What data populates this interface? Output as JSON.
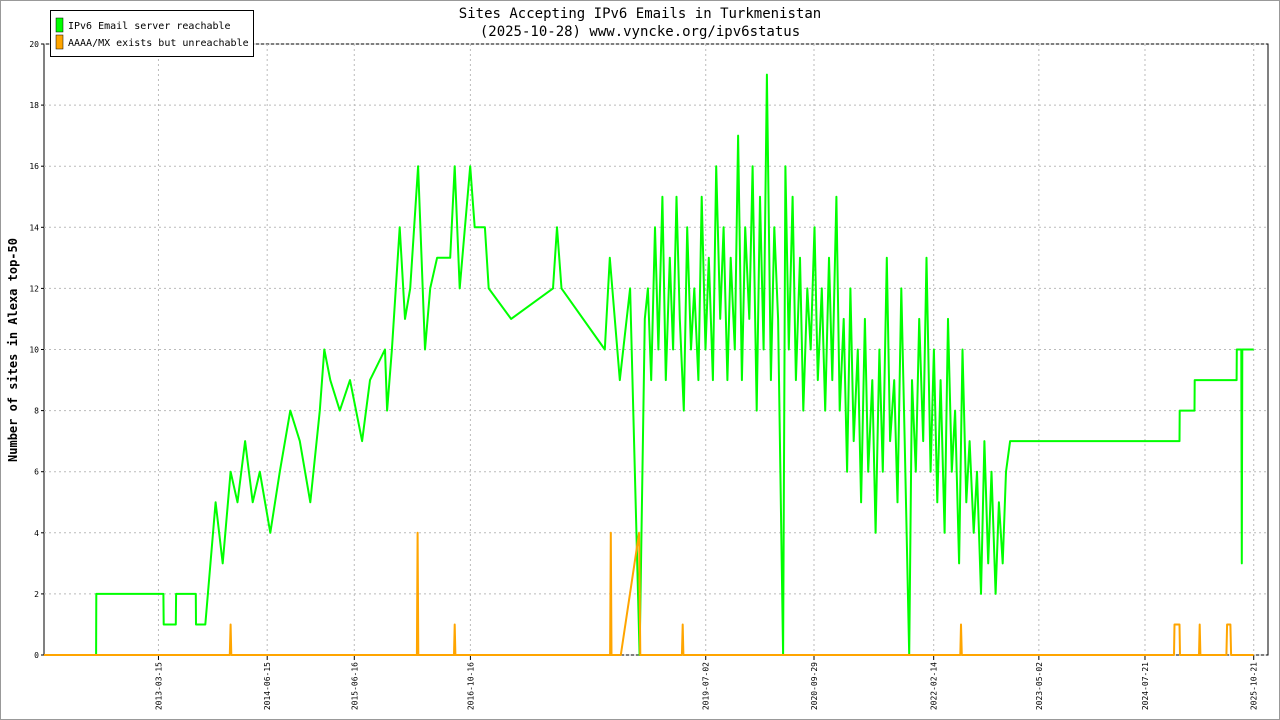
{
  "chart_data": {
    "type": "line",
    "title": "Sites Accepting IPv6 Emails in Turkmenistan",
    "subtitle": "(2025-10-28) www.vyncke.org/ipv6status",
    "y_label": "Number of sites in Alexa top-50",
    "xlim": [
      "2011-11-20",
      "2025-12-20"
    ],
    "xticks": [
      "2013-03-15",
      "2014-06-15",
      "2015-06-16",
      "2016-10-16",
      "2019-07-02",
      "2020-09-29",
      "2022-02-14",
      "2023-05-02",
      "2024-07-21",
      "2025-10-21"
    ],
    "ylim": [
      0,
      20
    ],
    "yticks": [
      0,
      2,
      4,
      6,
      8,
      10,
      12,
      14,
      16,
      18,
      20
    ],
    "grid": true,
    "legend": "top-left",
    "series": [
      {
        "name": "IPv6 Email server reachable",
        "color": "#00ff00",
        "x": [
          "2011-11-20",
          "2012-06-26",
          "2012-06-27",
          "2013-04-05",
          "2013-04-06",
          "2013-05-27",
          "2013-05-28",
          "2013-08-19",
          "2013-08-20",
          "2013-09-28",
          "2013-11-10",
          "2013-12-10",
          "2014-01-12",
          "2014-02-10",
          "2014-03-14",
          "2014-04-15",
          "2014-05-15",
          "2014-06-28",
          "2014-08-07",
          "2014-09-20",
          "2014-10-30",
          "2014-12-13",
          "2015-01-22",
          "2015-02-10",
          "2015-03-07",
          "2015-04-16",
          "2015-05-29",
          "2015-07-19",
          "2015-08-21",
          "2015-10-23",
          "2015-11-01",
          "2015-11-21",
          "2015-12-24",
          "2016-01-15",
          "2016-02-06",
          "2016-03-10",
          "2016-04-08",
          "2016-04-30",
          "2016-05-29",
          "2016-07-23",
          "2016-08-11",
          "2016-09-01",
          "2016-10-15",
          "2016-11-03",
          "2016-12-16",
          "2017-01-01",
          "2017-04-05",
          "2017-09-28",
          "2017-10-15",
          "2017-11-03",
          "2018-05-04",
          "2018-05-25",
          "2018-07-06",
          "2018-08-18",
          "2018-09-27",
          "2018-10-19",
          "2018-11-01",
          "2018-11-15",
          "2018-12-01",
          "2018-12-15",
          "2019-01-01",
          "2019-01-15",
          "2019-02-01",
          "2019-02-15",
          "2019-03-01",
          "2019-03-15",
          "2019-04-01",
          "2019-04-15",
          "2019-05-01",
          "2019-05-15",
          "2019-06-01",
          "2019-06-15",
          "2019-07-01",
          "2019-07-15",
          "2019-08-01",
          "2019-08-15",
          "2019-09-01",
          "2019-09-15",
          "2019-10-01",
          "2019-10-15",
          "2019-11-01",
          "2019-11-15",
          "2019-12-01",
          "2019-12-15",
          "2020-01-01",
          "2020-01-15",
          "2020-02-01",
          "2020-02-15",
          "2020-03-01",
          "2020-03-15",
          "2020-04-01",
          "2020-04-15",
          "2020-05-01",
          "2020-05-22",
          "2020-06-01",
          "2020-06-15",
          "2020-07-01",
          "2020-07-15",
          "2020-08-01",
          "2020-08-15",
          "2020-09-01",
          "2020-09-15",
          "2020-10-01",
          "2020-10-15",
          "2020-11-01",
          "2020-11-15",
          "2020-12-01",
          "2020-12-15",
          "2021-01-01",
          "2021-01-15",
          "2021-02-01",
          "2021-02-15",
          "2021-03-01",
          "2021-03-15",
          "2021-04-01",
          "2021-04-15",
          "2021-05-01",
          "2021-05-15",
          "2021-06-01",
          "2021-06-15",
          "2021-07-01",
          "2021-07-15",
          "2021-08-01",
          "2021-08-15",
          "2021-09-01",
          "2021-09-15",
          "2021-10-01",
          "2021-10-15",
          "2021-11-03",
          "2021-11-15",
          "2021-12-01",
          "2021-12-15",
          "2022-01-01",
          "2022-01-15",
          "2022-02-01",
          "2022-02-15",
          "2022-03-01",
          "2022-03-15",
          "2022-04-01",
          "2022-04-15",
          "2022-05-01",
          "2022-05-15",
          "2022-06-01",
          "2022-06-15",
          "2022-07-01",
          "2022-07-15",
          "2022-08-01",
          "2022-08-15",
          "2022-09-01",
          "2022-09-15",
          "2022-10-01",
          "2022-10-15",
          "2022-11-01",
          "2022-11-15",
          "2022-12-01",
          "2022-12-15",
          "2023-01-01",
          "2024-12-13",
          "2024-12-14",
          "2025-02-14",
          "2025-02-15",
          "2025-08-10",
          "2025-08-11",
          "2025-08-30",
          "2025-09-01",
          "2025-09-03",
          "2025-10-21"
        ],
        "values": [
          0,
          0,
          2,
          2,
          1,
          1,
          2,
          2,
          1,
          1,
          5,
          3,
          6,
          5,
          7,
          5,
          6,
          4,
          6,
          8,
          7,
          5,
          8,
          10,
          9,
          8,
          9,
          7,
          9,
          10,
          8,
          10,
          14,
          11,
          12,
          16,
          10,
          12,
          13,
          13,
          16,
          12,
          16,
          14,
          14,
          12,
          11,
          12,
          14,
          12,
          10,
          13,
          9,
          12,
          0,
          11,
          12,
          9,
          14,
          10,
          15,
          9,
          13,
          10,
          15,
          11,
          8,
          14,
          10,
          12,
          9,
          15,
          10,
          13,
          9,
          16,
          11,
          14,
          9,
          13,
          10,
          17,
          9,
          14,
          11,
          16,
          8,
          15,
          10,
          19,
          9,
          14,
          11,
          0,
          16,
          10,
          15,
          9,
          13,
          8,
          12,
          10,
          14,
          9,
          12,
          8,
          13,
          9,
          15,
          8,
          11,
          6,
          12,
          7,
          10,
          5,
          11,
          6,
          9,
          4,
          10,
          6,
          13,
          7,
          9,
          5,
          12,
          7,
          0,
          9,
          6,
          11,
          7,
          13,
          6,
          10,
          5,
          9,
          4,
          11,
          6,
          8,
          3,
          10,
          5,
          7,
          4,
          6,
          2,
          7,
          3,
          6,
          2,
          5,
          3,
          6,
          7,
          7,
          8,
          8,
          9,
          9,
          10,
          10,
          3,
          10,
          10
        ]
      },
      {
        "name": "AAAA/MX exists but unreachable",
        "color": "#ffa500",
        "x": [
          "2011-11-20",
          "2014-01-09",
          "2014-01-12",
          "2014-01-15",
          "2016-03-05",
          "2016-03-08",
          "2016-03-11",
          "2016-08-08",
          "2016-08-11",
          "2016-08-14",
          "2018-05-26",
          "2018-05-29",
          "2018-06-01",
          "2018-07-10",
          "2018-09-25",
          "2018-09-30",
          "2019-03-24",
          "2019-03-27",
          "2019-03-30",
          "2022-06-06",
          "2022-06-09",
          "2022-06-12",
          "2024-11-20",
          "2024-11-22",
          "2024-12-13",
          "2024-12-15",
          "2025-03-05",
          "2025-03-08",
          "2025-03-11",
          "2025-06-28",
          "2025-07-01",
          "2025-07-15",
          "2025-07-18",
          "2025-10-21"
        ],
        "values": [
          0,
          0,
          1,
          0,
          0,
          4,
          0,
          0,
          1,
          0,
          0,
          4,
          0,
          0,
          4,
          0,
          0,
          1,
          0,
          0,
          1,
          0,
          0,
          1,
          1,
          0,
          0,
          1,
          0,
          0,
          1,
          1,
          0,
          0
        ]
      }
    ]
  }
}
